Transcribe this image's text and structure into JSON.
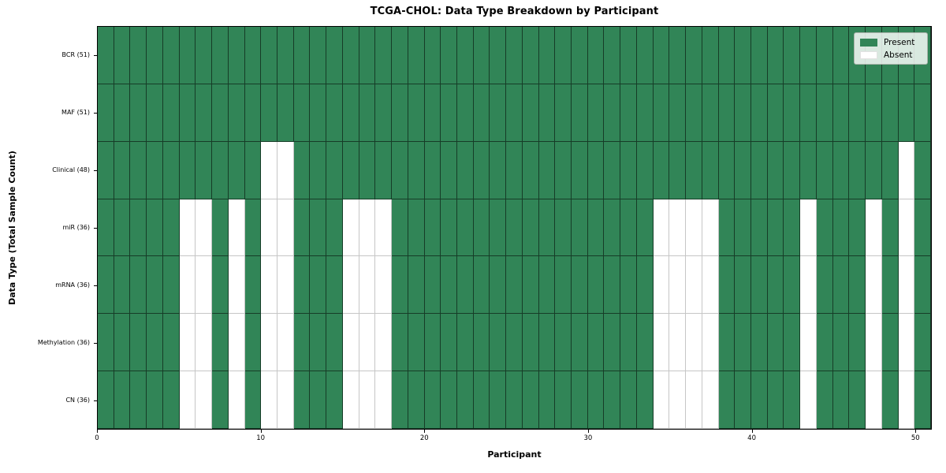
{
  "title": "TCGA-CHOL: Data Type Breakdown by Participant",
  "colors": {
    "present": "#318557",
    "absent": "#ffffff",
    "grid_line_on_green": "rgba(0,0,0,0.55)",
    "grid_line_on_white": "#c6c6c6",
    "spine": "#000000"
  },
  "chart_data": {
    "type": "heatmap",
    "title": "TCGA-CHOL: Data Type Breakdown by Participant",
    "xlabel": "Participant",
    "ylabel": "Data Type (Total Sample Count)",
    "x_range": [
      0,
      51
    ],
    "n_participants": 51,
    "x_ticks": [
      0,
      10,
      20,
      30,
      40,
      50
    ],
    "grid": true,
    "legend_position": "upper right",
    "legend_entries": [
      {
        "label": "Present",
        "color": "#318557"
      },
      {
        "label": "Absent",
        "color": "#ffffff"
      }
    ],
    "cell_values": "1 = Present, 0 = Absent; rows listed top to bottom; absent_columns are participant indices with value 0",
    "rows": [
      {
        "label": "BCR (51)",
        "name": "BCR",
        "present_count": 51,
        "absent_columns": []
      },
      {
        "label": "MAF (51)",
        "name": "MAF",
        "present_count": 51,
        "absent_columns": []
      },
      {
        "label": "Clinical (48)",
        "name": "Clinical",
        "present_count": 48,
        "absent_columns": [
          10,
          11,
          49
        ]
      },
      {
        "label": "miR (36)",
        "name": "miR",
        "present_count": 36,
        "absent_columns": [
          5,
          6,
          8,
          10,
          11,
          15,
          16,
          17,
          34,
          35,
          36,
          37,
          43,
          47,
          49
        ]
      },
      {
        "label": "mRNA (36)",
        "name": "mRNA",
        "present_count": 36,
        "absent_columns": [
          5,
          6,
          8,
          10,
          11,
          15,
          16,
          17,
          34,
          35,
          36,
          37,
          43,
          47,
          49
        ]
      },
      {
        "label": "Methylation (36)",
        "name": "Methylation",
        "present_count": 36,
        "absent_columns": [
          5,
          6,
          8,
          10,
          11,
          15,
          16,
          17,
          34,
          35,
          36,
          37,
          43,
          47,
          49
        ]
      },
      {
        "label": "CN (36)",
        "name": "CN",
        "present_count": 36,
        "absent_columns": [
          5,
          6,
          8,
          10,
          11,
          15,
          16,
          17,
          34,
          35,
          36,
          37,
          43,
          47,
          49
        ]
      }
    ]
  }
}
